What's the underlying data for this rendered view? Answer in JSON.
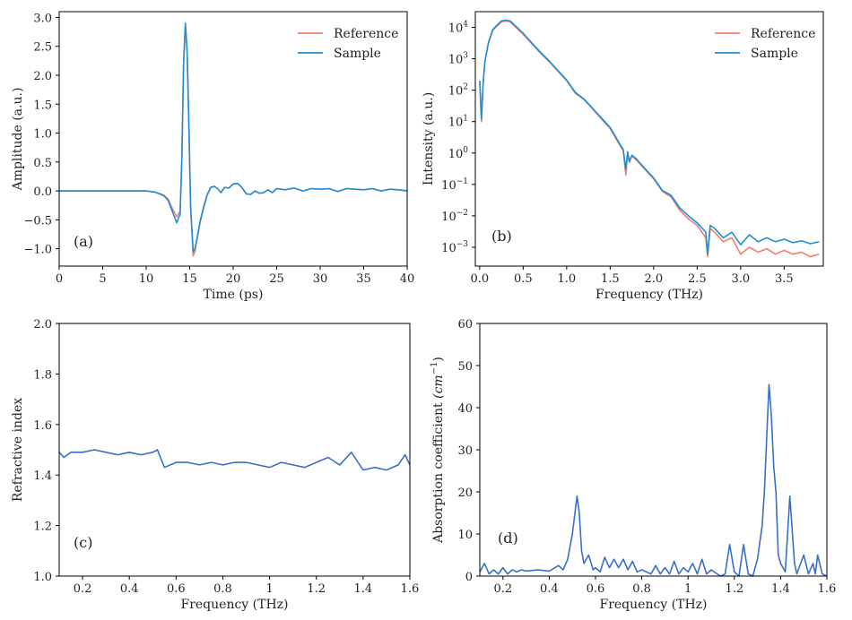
{
  "colors": {
    "reference": "#f07f6e",
    "sample": "#1f8fd6",
    "single": "#3a6fc8",
    "axis": "#000000"
  },
  "chart_data": [
    {
      "id": "a",
      "type": "line",
      "panel_label": "(a)",
      "xlabel": "Time (ps)",
      "ylabel": "Amplitude (a.u.)",
      "xlim": [
        0,
        40
      ],
      "ylim": [
        -1.3,
        3.1
      ],
      "xticks": [
        0,
        5,
        10,
        15,
        20,
        25,
        30,
        35,
        40
      ],
      "yticks": [
        -1.0,
        -0.5,
        0.0,
        0.5,
        1.0,
        1.5,
        2.0,
        2.5,
        3.0
      ],
      "ytick_labels": [
        "−1.0",
        "−0.5",
        "0.0",
        "0.5",
        "1.0",
        "1.5",
        "2.0",
        "2.5",
        "3.0"
      ],
      "legend": {
        "position": "top-right"
      },
      "series": [
        {
          "name": "Reference",
          "color_key": "reference",
          "x": [
            0,
            5,
            10,
            11,
            12,
            12.5,
            13,
            13.5,
            13.9,
            14.1,
            14.3,
            14.5,
            14.7,
            14.9,
            15.1,
            15.4,
            15.6,
            15.9,
            16.2,
            16.6,
            17,
            17.4,
            17.8,
            18.2,
            18.6,
            19,
            19.5,
            20,
            20.5,
            21,
            21.5,
            22,
            22.5,
            23,
            23.5,
            24,
            24.5,
            25,
            26,
            27,
            28,
            29,
            30,
            31,
            32,
            33,
            34,
            35,
            36,
            37,
            38,
            39,
            40
          ],
          "y": [
            0.0,
            0.0,
            0.0,
            -0.02,
            -0.07,
            -0.14,
            -0.3,
            -0.45,
            -0.35,
            0.6,
            2.2,
            2.88,
            2.4,
            1.2,
            -0.3,
            -1.12,
            -1.05,
            -0.8,
            -0.55,
            -0.3,
            -0.08,
            0.05,
            0.08,
            0.04,
            -0.03,
            0.06,
            0.05,
            0.12,
            0.13,
            0.06,
            -0.05,
            -0.06,
            0.0,
            -0.04,
            -0.03,
            0.02,
            -0.03,
            0.04,
            0.02,
            0.05,
            0.0,
            0.04,
            0.03,
            0.04,
            -0.01,
            0.04,
            0.03,
            0.02,
            0.04,
            0.0,
            0.03,
            0.02,
            0.0
          ]
        },
        {
          "name": "Sample",
          "color_key": "sample",
          "x": [
            0,
            5,
            10,
            11,
            12,
            12.5,
            13,
            13.5,
            13.9,
            14.1,
            14.3,
            14.5,
            14.7,
            14.9,
            15.1,
            15.4,
            15.6,
            15.9,
            16.2,
            16.6,
            17,
            17.4,
            17.8,
            18.2,
            18.6,
            19,
            19.5,
            20,
            20.5,
            21,
            21.5,
            22,
            22.5,
            23,
            23.5,
            24,
            24.5,
            25,
            26,
            27,
            28,
            29,
            30,
            31,
            32,
            33,
            34,
            35,
            36,
            37,
            38,
            39,
            40
          ],
          "y": [
            0.0,
            0.0,
            0.0,
            -0.02,
            -0.08,
            -0.16,
            -0.35,
            -0.55,
            -0.4,
            0.55,
            2.2,
            2.9,
            2.45,
            1.25,
            -0.25,
            -1.05,
            -1.0,
            -0.78,
            -0.52,
            -0.28,
            -0.07,
            0.06,
            0.08,
            0.04,
            -0.03,
            0.06,
            0.05,
            0.12,
            0.13,
            0.06,
            -0.05,
            -0.06,
            0.0,
            -0.04,
            -0.03,
            0.02,
            -0.03,
            0.04,
            0.02,
            0.05,
            0.0,
            0.04,
            0.03,
            0.04,
            -0.01,
            0.04,
            0.03,
            0.02,
            0.04,
            0.0,
            0.03,
            0.02,
            0.0
          ]
        }
      ]
    },
    {
      "id": "b",
      "type": "line",
      "panel_label": "(b)",
      "xlabel": "Frequency (THz)",
      "ylabel": "Intensity (a.u.)",
      "yscale": "log",
      "xlim": [
        -0.05,
        3.95
      ],
      "ylim_log10": [
        -3.6,
        4.5
      ],
      "xticks": [
        0.0,
        0.5,
        1.0,
        1.5,
        2.0,
        2.5,
        3.0,
        3.5
      ],
      "xtick_labels": [
        "0.0",
        "0.5",
        "1.0",
        "1.5",
        "2.0",
        "2.5",
        "3.0",
        "3.5"
      ],
      "yticks_log10": [
        -3,
        -2,
        -1,
        0,
        1,
        2,
        3,
        4
      ],
      "ytick_labels": [
        "10",
        "10",
        "10",
        "10",
        "10",
        "10",
        "10",
        "10"
      ],
      "ytick_exponents": [
        "−3",
        "−2",
        "−1",
        "0",
        "1",
        "2",
        "3",
        "4"
      ],
      "legend": {
        "position": "top-right"
      },
      "series": [
        {
          "name": "Reference",
          "color_key": "reference",
          "x": [
            0.0,
            0.02,
            0.04,
            0.06,
            0.1,
            0.15,
            0.2,
            0.25,
            0.3,
            0.35,
            0.4,
            0.5,
            0.6,
            0.7,
            0.8,
            0.9,
            1.0,
            1.1,
            1.2,
            1.3,
            1.4,
            1.5,
            1.6,
            1.65,
            1.68,
            1.7,
            1.72,
            1.75,
            1.8,
            1.9,
            2.0,
            2.1,
            2.2,
            2.3,
            2.4,
            2.5,
            2.6,
            2.62,
            2.65,
            2.7,
            2.8,
            2.9,
            3.0,
            3.1,
            3.2,
            3.3,
            3.4,
            3.5,
            3.6,
            3.7,
            3.8,
            3.9
          ],
          "y": [
            200,
            10,
            150,
            800,
            3000,
            8000,
            11000,
            15000,
            16000,
            15000,
            11000,
            6000,
            3000,
            1500,
            800,
            400,
            200,
            80,
            50,
            25,
            12,
            6,
            2,
            1.2,
            0.2,
            1.0,
            0.5,
            0.8,
            0.6,
            0.3,
            0.15,
            0.06,
            0.04,
            0.015,
            0.008,
            0.005,
            0.002,
            0.0005,
            0.004,
            0.003,
            0.0015,
            0.002,
            0.0006,
            0.001,
            0.0007,
            0.0009,
            0.0006,
            0.0008,
            0.0006,
            0.0007,
            0.0005,
            0.0006
          ]
        },
        {
          "name": "Sample",
          "color_key": "sample",
          "x": [
            0.0,
            0.02,
            0.04,
            0.06,
            0.1,
            0.15,
            0.2,
            0.25,
            0.3,
            0.35,
            0.4,
            0.5,
            0.6,
            0.7,
            0.8,
            0.9,
            1.0,
            1.1,
            1.2,
            1.3,
            1.4,
            1.5,
            1.6,
            1.65,
            1.68,
            1.7,
            1.72,
            1.75,
            1.8,
            1.9,
            2.0,
            2.1,
            2.2,
            2.3,
            2.4,
            2.5,
            2.6,
            2.62,
            2.65,
            2.7,
            2.8,
            2.9,
            3.0,
            3.1,
            3.2,
            3.3,
            3.4,
            3.5,
            3.6,
            3.7,
            3.8,
            3.9
          ],
          "y": [
            200,
            12,
            160,
            850,
            3200,
            8500,
            12000,
            16000,
            17000,
            16000,
            12000,
            6500,
            3200,
            1600,
            850,
            420,
            210,
            85,
            52,
            26,
            13,
            6.5,
            2.2,
            1.3,
            0.3,
            1.1,
            0.55,
            0.85,
            0.65,
            0.32,
            0.16,
            0.065,
            0.045,
            0.018,
            0.01,
            0.006,
            0.003,
            0.0006,
            0.005,
            0.004,
            0.002,
            0.003,
            0.0012,
            0.0025,
            0.0015,
            0.002,
            0.0015,
            0.0018,
            0.0014,
            0.0016,
            0.0013,
            0.0015
          ]
        }
      ]
    },
    {
      "id": "c",
      "type": "line",
      "panel_label": "(c)",
      "xlabel": "Frequency (THz)",
      "ylabel": "Refractive index",
      "xlim": [
        0.1,
        1.6
      ],
      "ylim": [
        1.0,
        2.0
      ],
      "xticks": [
        0.2,
        0.4,
        0.6,
        0.8,
        1.0,
        1.2,
        1.4,
        1.6
      ],
      "yticks": [
        1.0,
        1.2,
        1.4,
        1.6,
        1.8,
        2.0
      ],
      "series": [
        {
          "name": "",
          "color_key": "single",
          "x": [
            0.1,
            0.12,
            0.15,
            0.2,
            0.25,
            0.3,
            0.35,
            0.4,
            0.45,
            0.5,
            0.52,
            0.55,
            0.6,
            0.65,
            0.7,
            0.75,
            0.8,
            0.85,
            0.9,
            0.95,
            1.0,
            1.05,
            1.1,
            1.15,
            1.2,
            1.25,
            1.3,
            1.35,
            1.4,
            1.45,
            1.5,
            1.55,
            1.58,
            1.6
          ],
          "y": [
            1.49,
            1.47,
            1.49,
            1.49,
            1.5,
            1.49,
            1.48,
            1.49,
            1.48,
            1.49,
            1.5,
            1.43,
            1.45,
            1.45,
            1.44,
            1.45,
            1.44,
            1.45,
            1.45,
            1.44,
            1.43,
            1.45,
            1.44,
            1.43,
            1.45,
            1.47,
            1.44,
            1.49,
            1.42,
            1.43,
            1.42,
            1.44,
            1.48,
            1.44
          ]
        }
      ]
    },
    {
      "id": "d",
      "type": "line",
      "panel_label": "(d)",
      "xlabel": "Frequency (THz)",
      "ylabel": "Absorption coefficient",
      "ylabel_math": "(cm",
      "ylabel_sup": "−1",
      "ylabel_close": ")",
      "xlim": [
        0.1,
        1.6
      ],
      "ylim": [
        0,
        60
      ],
      "xticks": [
        0.2,
        0.4,
        0.6,
        0.8,
        1.0,
        1.2,
        1.4,
        1.6
      ],
      "yticks": [
        0,
        10,
        20,
        30,
        40,
        50,
        60
      ],
      "series": [
        {
          "name": "",
          "color_key": "single",
          "x": [
            0.1,
            0.12,
            0.14,
            0.16,
            0.18,
            0.2,
            0.22,
            0.24,
            0.26,
            0.28,
            0.3,
            0.35,
            0.4,
            0.44,
            0.46,
            0.48,
            0.5,
            0.52,
            0.53,
            0.54,
            0.55,
            0.57,
            0.59,
            0.6,
            0.62,
            0.64,
            0.66,
            0.68,
            0.7,
            0.72,
            0.74,
            0.76,
            0.78,
            0.8,
            0.84,
            0.86,
            0.88,
            0.9,
            0.92,
            0.94,
            0.96,
            0.98,
            1.0,
            1.02,
            1.04,
            1.06,
            1.08,
            1.1,
            1.14,
            1.16,
            1.18,
            1.2,
            1.22,
            1.24,
            1.26,
            1.28,
            1.3,
            1.32,
            1.33,
            1.34,
            1.35,
            1.36,
            1.37,
            1.38,
            1.39,
            1.4,
            1.42,
            1.44,
            1.46,
            1.47,
            1.48,
            1.5,
            1.52,
            1.54,
            1.55,
            1.56,
            1.58,
            1.6
          ],
          "y": [
            1,
            3,
            0.5,
            1.5,
            0.5,
            2,
            0.5,
            1.5,
            1,
            1.5,
            1.2,
            1.5,
            1.2,
            2.5,
            1.5,
            4,
            10,
            19,
            15,
            6,
            3,
            5,
            1.5,
            2,
            1,
            4.5,
            2,
            4,
            2,
            4,
            1.5,
            3.5,
            1,
            1.5,
            0.5,
            2.5,
            0.5,
            2,
            0.5,
            3.5,
            0.5,
            2,
            1,
            3,
            0.5,
            4,
            0.5,
            1.5,
            0,
            0.5,
            7.5,
            1,
            0,
            7.5,
            0.5,
            0,
            4,
            12,
            20,
            33,
            45.5,
            38,
            26,
            20,
            5,
            3,
            1,
            19,
            3,
            0.5,
            2,
            5,
            0.5,
            3,
            0.5,
            5,
            0.5,
            0
          ]
        }
      ]
    }
  ]
}
